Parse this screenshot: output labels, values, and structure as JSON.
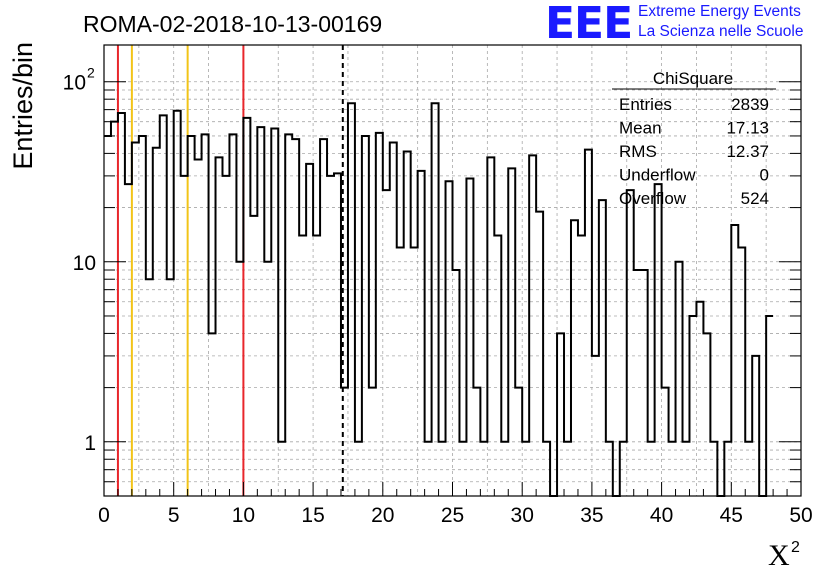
{
  "header": {
    "run_title": "ROMA-02-2018-10-13-00169",
    "logo_mark": "EEE",
    "logo_line1": "Extreme Energy Events",
    "logo_line2": "La Scienza nelle Scuole"
  },
  "stats_box": {
    "title": "ChiSquare",
    "rows": [
      {
        "label": "Entries",
        "value": "2839"
      },
      {
        "label": "Mean",
        "value": "17.13"
      },
      {
        "label": "RMS",
        "value": "12.37"
      },
      {
        "label": "Underflow",
        "value": "0"
      },
      {
        "label": "Overflow",
        "value": "524"
      }
    ]
  },
  "colors": {
    "histogram": "#000000",
    "red_marker": "#e8262b",
    "yellow_marker": "#f2c418",
    "mean_marker": "#000000",
    "grid": "#a8a8a8"
  },
  "chart_data": {
    "type": "histogram",
    "xlabel": "X",
    "xlabel_superscript": "2",
    "ylabel": "Entries/bin",
    "xlim": [
      0,
      50
    ],
    "ylim": [
      0.5,
      160
    ],
    "yscale": "log",
    "grid": true,
    "bin_width": 0.5,
    "x_ticks": [
      "0",
      "5",
      "10",
      "15",
      "20",
      "25",
      "30",
      "35",
      "40",
      "45",
      "50"
    ],
    "y_ticks": [
      {
        "value": 1,
        "label": "1"
      },
      {
        "value": 10,
        "label": "10"
      },
      {
        "value": 100,
        "label": "10",
        "exponent": "2"
      }
    ],
    "values": [
      50,
      60,
      67,
      27,
      46,
      50,
      8,
      43,
      65,
      8,
      69,
      30,
      50,
      37,
      51,
      4,
      38,
      30,
      51,
      10,
      63,
      18,
      56,
      10,
      55,
      1,
      51,
      48,
      14,
      35,
      14,
      48,
      30,
      31,
      2,
      76,
      1,
      50,
      2,
      52,
      25,
      46,
      12,
      41,
      12,
      32,
      1,
      76,
      1,
      28,
      9,
      1,
      29,
      2,
      1,
      38,
      14,
      1,
      33,
      2,
      1,
      39,
      19,
      1,
      0,
      4,
      1,
      17,
      14,
      42,
      3,
      22,
      1,
      0,
      1,
      25,
      9,
      9,
      1,
      27,
      2,
      1,
      10,
      1,
      5,
      6,
      4,
      1,
      0,
      1,
      16,
      12,
      1,
      3,
      0,
      5
    ],
    "vertical_markers": [
      {
        "x": 1,
        "color": "red"
      },
      {
        "x": 2,
        "color": "yellow"
      },
      {
        "x": 6,
        "color": "yellow"
      },
      {
        "x": 10,
        "color": "red"
      },
      {
        "x": 17.13,
        "color": "black",
        "style": "dashed"
      }
    ]
  }
}
